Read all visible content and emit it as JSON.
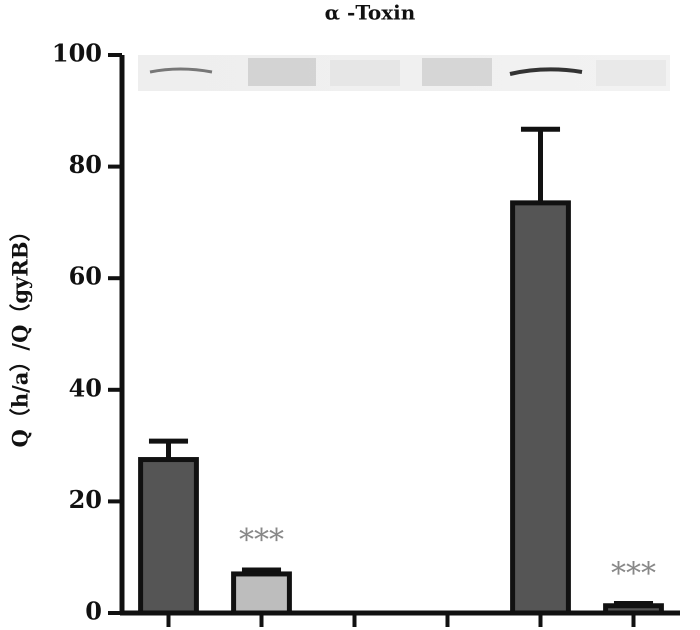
{
  "chart_data": {
    "type": "bar",
    "title": "α -Toxin",
    "y_label": "Q（h/a）/Q（gyRB）",
    "categories": [
      null,
      null,
      null,
      null,
      null,
      null
    ],
    "values": [
      27.5,
      7,
      0,
      0,
      73.5,
      1.3
    ],
    "errors": [
      3.3,
      0.7,
      0,
      0,
      13.2,
      0.4
    ],
    "colors": [
      "#555555",
      "#bdbdbd",
      "#555555",
      "#555555",
      "#555555",
      "#555555"
    ],
    "annotations": [
      {
        "text": "***",
        "index": 1
      },
      {
        "text": "***",
        "index": 5
      }
    ],
    "ylim": [
      0,
      100
    ],
    "yticks": [
      0,
      20,
      40,
      60,
      80,
      100
    ]
  }
}
